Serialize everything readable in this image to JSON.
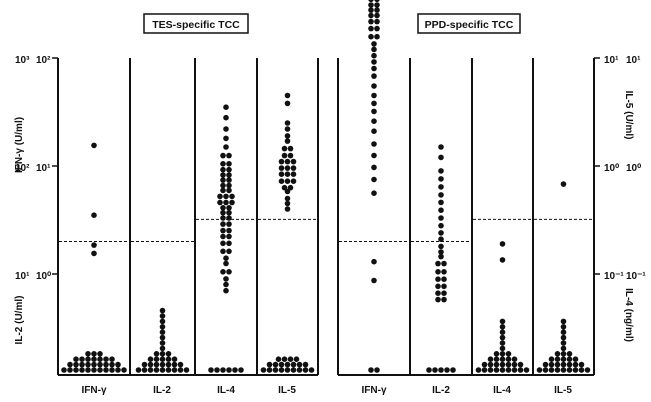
{
  "chart_data": [
    {
      "type": "scatter",
      "title": "TES-specific TCC",
      "categories": [
        "IFN-γ",
        "IL-2",
        "IL-4",
        "IL-5"
      ],
      "cutoff_lines": {
        "IFN-γ": 2.0,
        "IL-2": 2.0,
        "IL-4": 3.2,
        "IL-5": 3.2
      },
      "series": [
        {
          "category": "IFN-γ",
          "values": [
            15.5,
            3.5,
            1.85,
            1.55
          ],
          "below_detection_count": 30
        },
        {
          "category": "IL-2",
          "values": [],
          "below_detection_count": 36
        },
        {
          "category": "IL-4",
          "values": [
            35,
            28,
            22,
            18,
            15,
            13,
            12,
            11,
            10,
            9.5,
            9,
            8.5,
            8,
            7.6,
            7.2,
            6.8,
            6.4,
            6.1,
            5.8,
            5.5,
            5.2,
            5.0,
            4.8,
            4.6,
            4.4,
            4.2,
            4.0,
            3.8,
            3.6,
            3.4,
            3.2,
            3.0,
            2.8,
            2.6,
            2.45,
            2.3,
            2.15,
            2.0,
            1.85,
            1.7,
            1.55,
            1.4,
            1.25,
            1.1,
            1.0,
            0.9,
            0.8,
            0.7
          ],
          "below_detection_count": 6
        },
        {
          "category": "IL-5",
          "values": [
            45,
            38,
            25,
            22,
            19,
            17,
            15,
            14,
            13,
            12,
            11.5,
            11,
            10.5,
            10,
            9.5,
            9.2,
            8.8,
            8.4,
            8.0,
            7.6,
            7.2,
            6.9,
            6.5,
            6.1,
            5.8,
            5.0,
            4.5,
            4.0
          ],
          "below_detection_count": 20
        }
      ]
    },
    {
      "type": "scatter",
      "title": "PPD-specific TCC",
      "categories": [
        "IFN-γ",
        "IL-2",
        "IL-4",
        "IL-5"
      ],
      "cutoff_lines": {
        "IFN-γ": 2.0,
        "IL-2": 2.0,
        "IL-4": 3.2,
        "IL-5": 3.2
      },
      "series": [
        {
          "category": "IFN-γ",
          "values": [
            860,
            800,
            720,
            640,
            600,
            570,
            540,
            510,
            480,
            460,
            440,
            420,
            400,
            380,
            360,
            340,
            320,
            300,
            285,
            270,
            255,
            240,
            225,
            210,
            195,
            180,
            165,
            150,
            135,
            120,
            105,
            92,
            80,
            68,
            55,
            45,
            38,
            32,
            26,
            21,
            16,
            12.5,
            9.7,
            7.5,
            5.6,
            1.3,
            0.87
          ],
          "below_detection_count": 2
        },
        {
          "category": "IL-2",
          "values": [
            15,
            12,
            9,
            7.6,
            6.4,
            5.4,
            4.6,
            3.9,
            3.3,
            2.8,
            2.4,
            2.1,
            1.8,
            1.6,
            1.45,
            1.3,
            1.2,
            1.1,
            1.0,
            0.93,
            0.86,
            0.8,
            0.74,
            0.69,
            0.64,
            0.6,
            0.56
          ],
          "below_detection_count": 5
        },
        {
          "category": "IL-4",
          "values": [
            1.9,
            1.35
          ],
          "below_detection_count": 30
        },
        {
          "category": "IL-5",
          "values": [
            6.8
          ],
          "below_detection_count": 30
        }
      ]
    }
  ],
  "axes": {
    "left_outer_ticks": [
      "10³",
      "10²",
      "10¹"
    ],
    "left_inner_ticks": [
      "10²",
      "10¹",
      "10⁰"
    ],
    "left_top_label": "IFN-γ (U/ml)",
    "left_bottom_label": "IL-2 (U/ml)",
    "right_outer_ticks": [
      "10¹",
      "10⁰",
      "10⁻¹"
    ],
    "right_inner_ticks": [
      "10¹",
      "10⁰",
      "10⁻¹"
    ],
    "right_top_label": "IL-5 (U/ml)",
    "right_bottom_label": "IL-4 (ng/ml)",
    "x_labels": [
      "IFN-γ",
      "IL-2",
      "IL-4",
      "IL-5",
      "IFN-γ",
      "IL-2",
      "IL-4",
      "IL-5"
    ]
  },
  "colors": {
    "ink": "#111111",
    "dot": "#111111",
    "background": "#ffffff"
  }
}
